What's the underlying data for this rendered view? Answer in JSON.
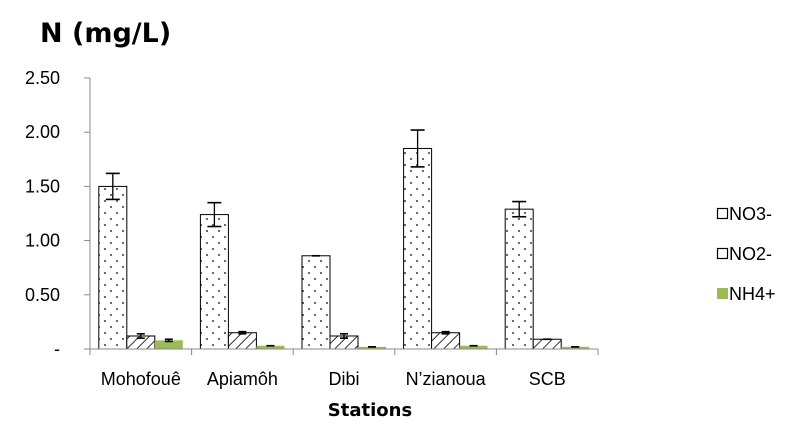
{
  "chart_data": {
    "type": "bar",
    "title": "N (mg/L)",
    "xlabel": "Stations",
    "ylabel": "",
    "categories": [
      "Mohofouê",
      "Apiamôh",
      "Dibi",
      "N’zianoua",
      "SCB"
    ],
    "yticks": [
      "-",
      "0.50",
      "1.00",
      "1.50",
      "2.00",
      "2.50"
    ],
    "ylim": [
      0,
      2.5
    ],
    "legend_position": "right",
    "series": [
      {
        "name": "NO3-",
        "pattern": "dots",
        "color": "#000000",
        "values": [
          1.5,
          1.24,
          0.86,
          1.85,
          1.29
        ],
        "errors": [
          0.12,
          0.11,
          0.0,
          0.17,
          0.07
        ]
      },
      {
        "name": "NO2-",
        "pattern": "diagonal-hatch",
        "color": "#000000",
        "values": [
          0.12,
          0.15,
          0.12,
          0.15,
          0.09
        ],
        "errors": [
          0.02,
          0.01,
          0.02,
          0.01,
          0.0
        ]
      },
      {
        "name": "NH4+",
        "pattern": "solid",
        "color": "#9bbb59",
        "values": [
          0.08,
          0.03,
          0.02,
          0.03,
          0.02
        ],
        "errors": [
          0.01,
          0.0,
          0.0,
          0.0,
          0.0
        ]
      }
    ]
  }
}
